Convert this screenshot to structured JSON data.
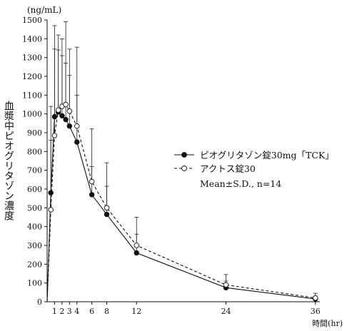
{
  "chart_data": {
    "type": "line",
    "unit_label": "(ng/mL)",
    "ylabel": "血漿中ピオグリタゾン濃度",
    "xlabel": "時間(hr)",
    "ylim": [
      0,
      1500
    ],
    "yticks": [
      0,
      100,
      200,
      300,
      400,
      500,
      600,
      700,
      800,
      900,
      1000,
      1100,
      1200,
      1300,
      1400,
      1500
    ],
    "xticks": [
      1,
      2,
      3,
      4,
      6,
      8,
      12,
      24,
      36
    ],
    "x": [
      0,
      0.5,
      1,
      1.5,
      2,
      2.5,
      3,
      4,
      6,
      8,
      12,
      24,
      36
    ],
    "series": [
      {
        "name": "ピオグリタゾン錠30mg「TCK」",
        "marker": "filled-circle",
        "line": "solid",
        "values": [
          0,
          580,
          985,
          1010,
          990,
          970,
          935,
          850,
          570,
          465,
          260,
          75,
          15
        ],
        "sd": [
          0,
          460,
          360,
          330,
          320,
          300,
          270,
          250,
          150,
          150,
          100,
          35,
          15
        ]
      },
      {
        "name": "アクトス錠30",
        "marker": "open-circle",
        "line": "dashed",
        "values": [
          0,
          490,
          885,
          1020,
          1040,
          1050,
          1015,
          935,
          640,
          500,
          300,
          90,
          20
        ],
        "sd": [
          0,
          370,
          585,
          400,
          360,
          440,
          330,
          420,
          280,
          240,
          150,
          55,
          25
        ]
      }
    ],
    "legend_note": "Mean±S.D., n=14",
    "legend_placement": "right-middle",
    "grid": false
  }
}
